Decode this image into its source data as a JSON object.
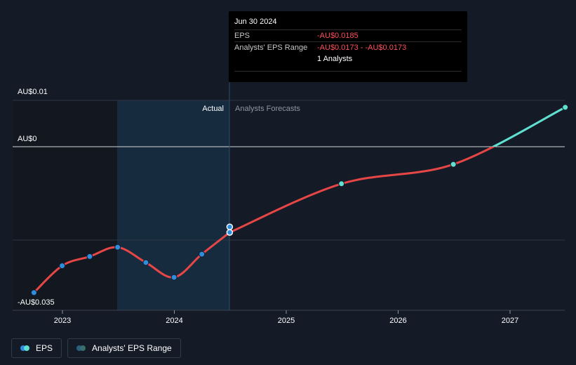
{
  "chart_data": {
    "type": "line",
    "y_tick_labels": [
      "AU$0.01",
      "AU$0",
      "-AU$0.035"
    ],
    "x_tick_labels": [
      "2023",
      "2024",
      "2025",
      "2026",
      "2027"
    ],
    "ylim": [
      -0.035,
      0.01
    ],
    "region_labels": {
      "actual": "Actual",
      "forecast": "Analysts Forecasts"
    },
    "series": [
      {
        "name": "EPS",
        "kind": "actual",
        "color": "#e64646",
        "marker_color": "#2d8ee0",
        "x": [
          "2022-09-30",
          "2022-12-31",
          "2023-03-31",
          "2023-06-30",
          "2023-09-30",
          "2023-12-31",
          "2024-03-31",
          "2024-06-30"
        ],
        "y": [
          -0.0315,
          -0.0257,
          -0.0237,
          -0.0217,
          -0.025,
          -0.0282,
          -0.0232,
          -0.0185
        ]
      },
      {
        "name": "EPS",
        "kind": "forecast",
        "color": "#e64646",
        "color_positive": "#5fe0d0",
        "marker_color": "#5fe0d0",
        "x": [
          "2024-06-30",
          "2025-06-30",
          "2026-06-30",
          "2027-06-30"
        ],
        "y": [
          -0.0185,
          -0.008,
          -0.0038,
          0.0085
        ],
        "markers": [
          false,
          true,
          true,
          true
        ]
      }
    ],
    "range_marker": {
      "x": "2024-06-30",
      "y": -0.0173,
      "color": "#2d8ee0"
    },
    "legend": [
      "EPS",
      "Analysts' EPS Range"
    ]
  },
  "tooltip": {
    "date": "Jun 30 2024",
    "eps_label": "EPS",
    "eps_value": "-AU$0.0185",
    "range_label": "Analysts' EPS Range",
    "range_value": "-AU$0.0173 - -AU$0.0173",
    "analysts_count": "1 Analysts"
  },
  "legend": {
    "eps_label": "EPS",
    "range_label": "Analysts' EPS Range",
    "colors": {
      "eps_a": "#2d8ee0",
      "eps_b": "#5fe0d0",
      "range_a": "#2a5f82",
      "range_b": "#3a6e6a"
    }
  }
}
